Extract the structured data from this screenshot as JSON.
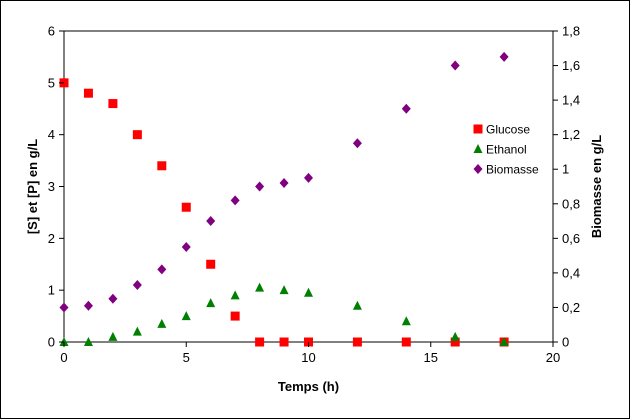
{
  "chart_data": {
    "type": "scatter",
    "xlabel": "Temps (h)",
    "ylabel": "[S] et [P] en g/L",
    "y2label": "Biomasse en g/L",
    "xlim": [
      0,
      20
    ],
    "ylim": [
      0,
      6
    ],
    "y2lim": [
      0,
      1.8
    ],
    "xticks": [
      "0",
      "5",
      "10",
      "15",
      "20"
    ],
    "yticks": [
      "0",
      "1",
      "2",
      "3",
      "4",
      "5",
      "6"
    ],
    "y2ticks": [
      "0",
      "0,2",
      "0,4",
      "0,6",
      "0,8",
      "1",
      "1,2",
      "1,4",
      "1,6",
      "1,8"
    ],
    "grid": false,
    "legend_position": "right",
    "series": [
      {
        "name": "Glucose",
        "axis": "left",
        "marker": "square",
        "color": "#ff0000",
        "points": [
          [
            0,
            5
          ],
          [
            1,
            4.8
          ],
          [
            2,
            4.6
          ],
          [
            3,
            4
          ],
          [
            4,
            3.4
          ],
          [
            5,
            2.6
          ],
          [
            6,
            1.5
          ],
          [
            7,
            0.5
          ],
          [
            8,
            0
          ],
          [
            9,
            0
          ],
          [
            10,
            0
          ],
          [
            12,
            0
          ],
          [
            14,
            0
          ],
          [
            16,
            0
          ],
          [
            18,
            0
          ]
        ]
      },
      {
        "name": "Ethanol",
        "axis": "left",
        "marker": "triangle",
        "color": "#008000",
        "points": [
          [
            0,
            0
          ],
          [
            1,
            0
          ],
          [
            2,
            0.1
          ],
          [
            3,
            0.2
          ],
          [
            4,
            0.35
          ],
          [
            5,
            0.5
          ],
          [
            6,
            0.75
          ],
          [
            7,
            0.9
          ],
          [
            8,
            1.05
          ],
          [
            9,
            1
          ],
          [
            10,
            0.95
          ],
          [
            12,
            0.7
          ],
          [
            14,
            0.4
          ],
          [
            16,
            0.1
          ],
          [
            18,
            0
          ]
        ]
      },
      {
        "name": "Biomasse",
        "axis": "right",
        "marker": "diamond",
        "color": "#800080",
        "points": [
          [
            0,
            0.2
          ],
          [
            1,
            0.21
          ],
          [
            2,
            0.25
          ],
          [
            3,
            0.33
          ],
          [
            4,
            0.42
          ],
          [
            5,
            0.55
          ],
          [
            6,
            0.7
          ],
          [
            7,
            0.82
          ],
          [
            8,
            0.9
          ],
          [
            9,
            0.92
          ],
          [
            10,
            0.95
          ],
          [
            12,
            1.15
          ],
          [
            14,
            1.35
          ],
          [
            16,
            1.6
          ],
          [
            18,
            1.65
          ]
        ]
      }
    ]
  }
}
